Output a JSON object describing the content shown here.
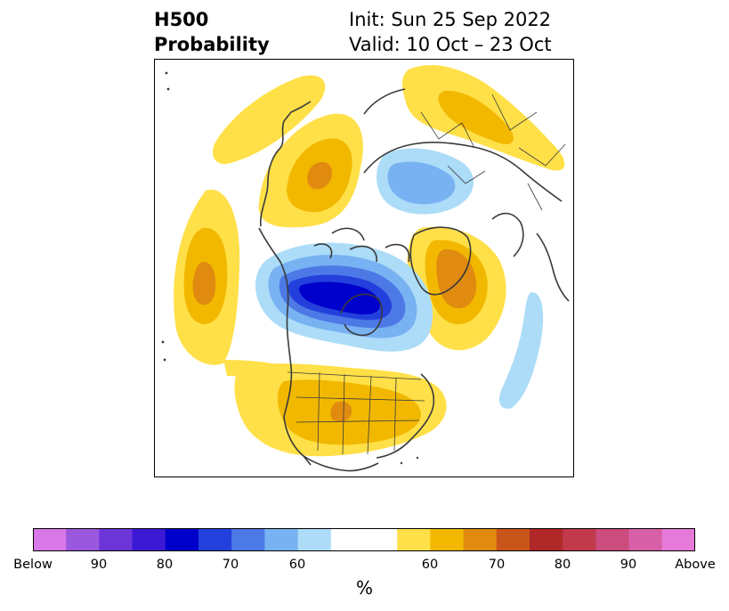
{
  "title": {
    "left_line1": "H500",
    "left_line2": "Probability",
    "right_line1": "Init: Sun 25 Sep 2022",
    "right_line2": "Valid: 10 Oct – 23 Oct"
  },
  "colorbar": {
    "colors": [
      "#d877e8",
      "#9a58de",
      "#6c35d8",
      "#3a18d4",
      "#0000cc",
      "#2440dc",
      "#4d79e6",
      "#78b2f2",
      "#acdcf8",
      "#ffffff",
      "#ffe048",
      "#f2b800",
      "#e08b10",
      "#c8561a",
      "#b02828",
      "#c03a4c",
      "#cc4c7e",
      "#d860a8",
      "#e67ad8"
    ],
    "tick_labels": [
      "Below",
      "90",
      "80",
      "70",
      "60",
      "60",
      "70",
      "80",
      "90",
      "Above"
    ],
    "unit": "%"
  },
  "palette": {
    "above": [
      "#ffe048",
      "#f2b800",
      "#e08b10"
    ],
    "below": [
      "#acdcf8",
      "#78b2f2",
      "#4d79e6",
      "#2440dc",
      "#0000cc"
    ],
    "coast": "#3a3a3a"
  }
}
